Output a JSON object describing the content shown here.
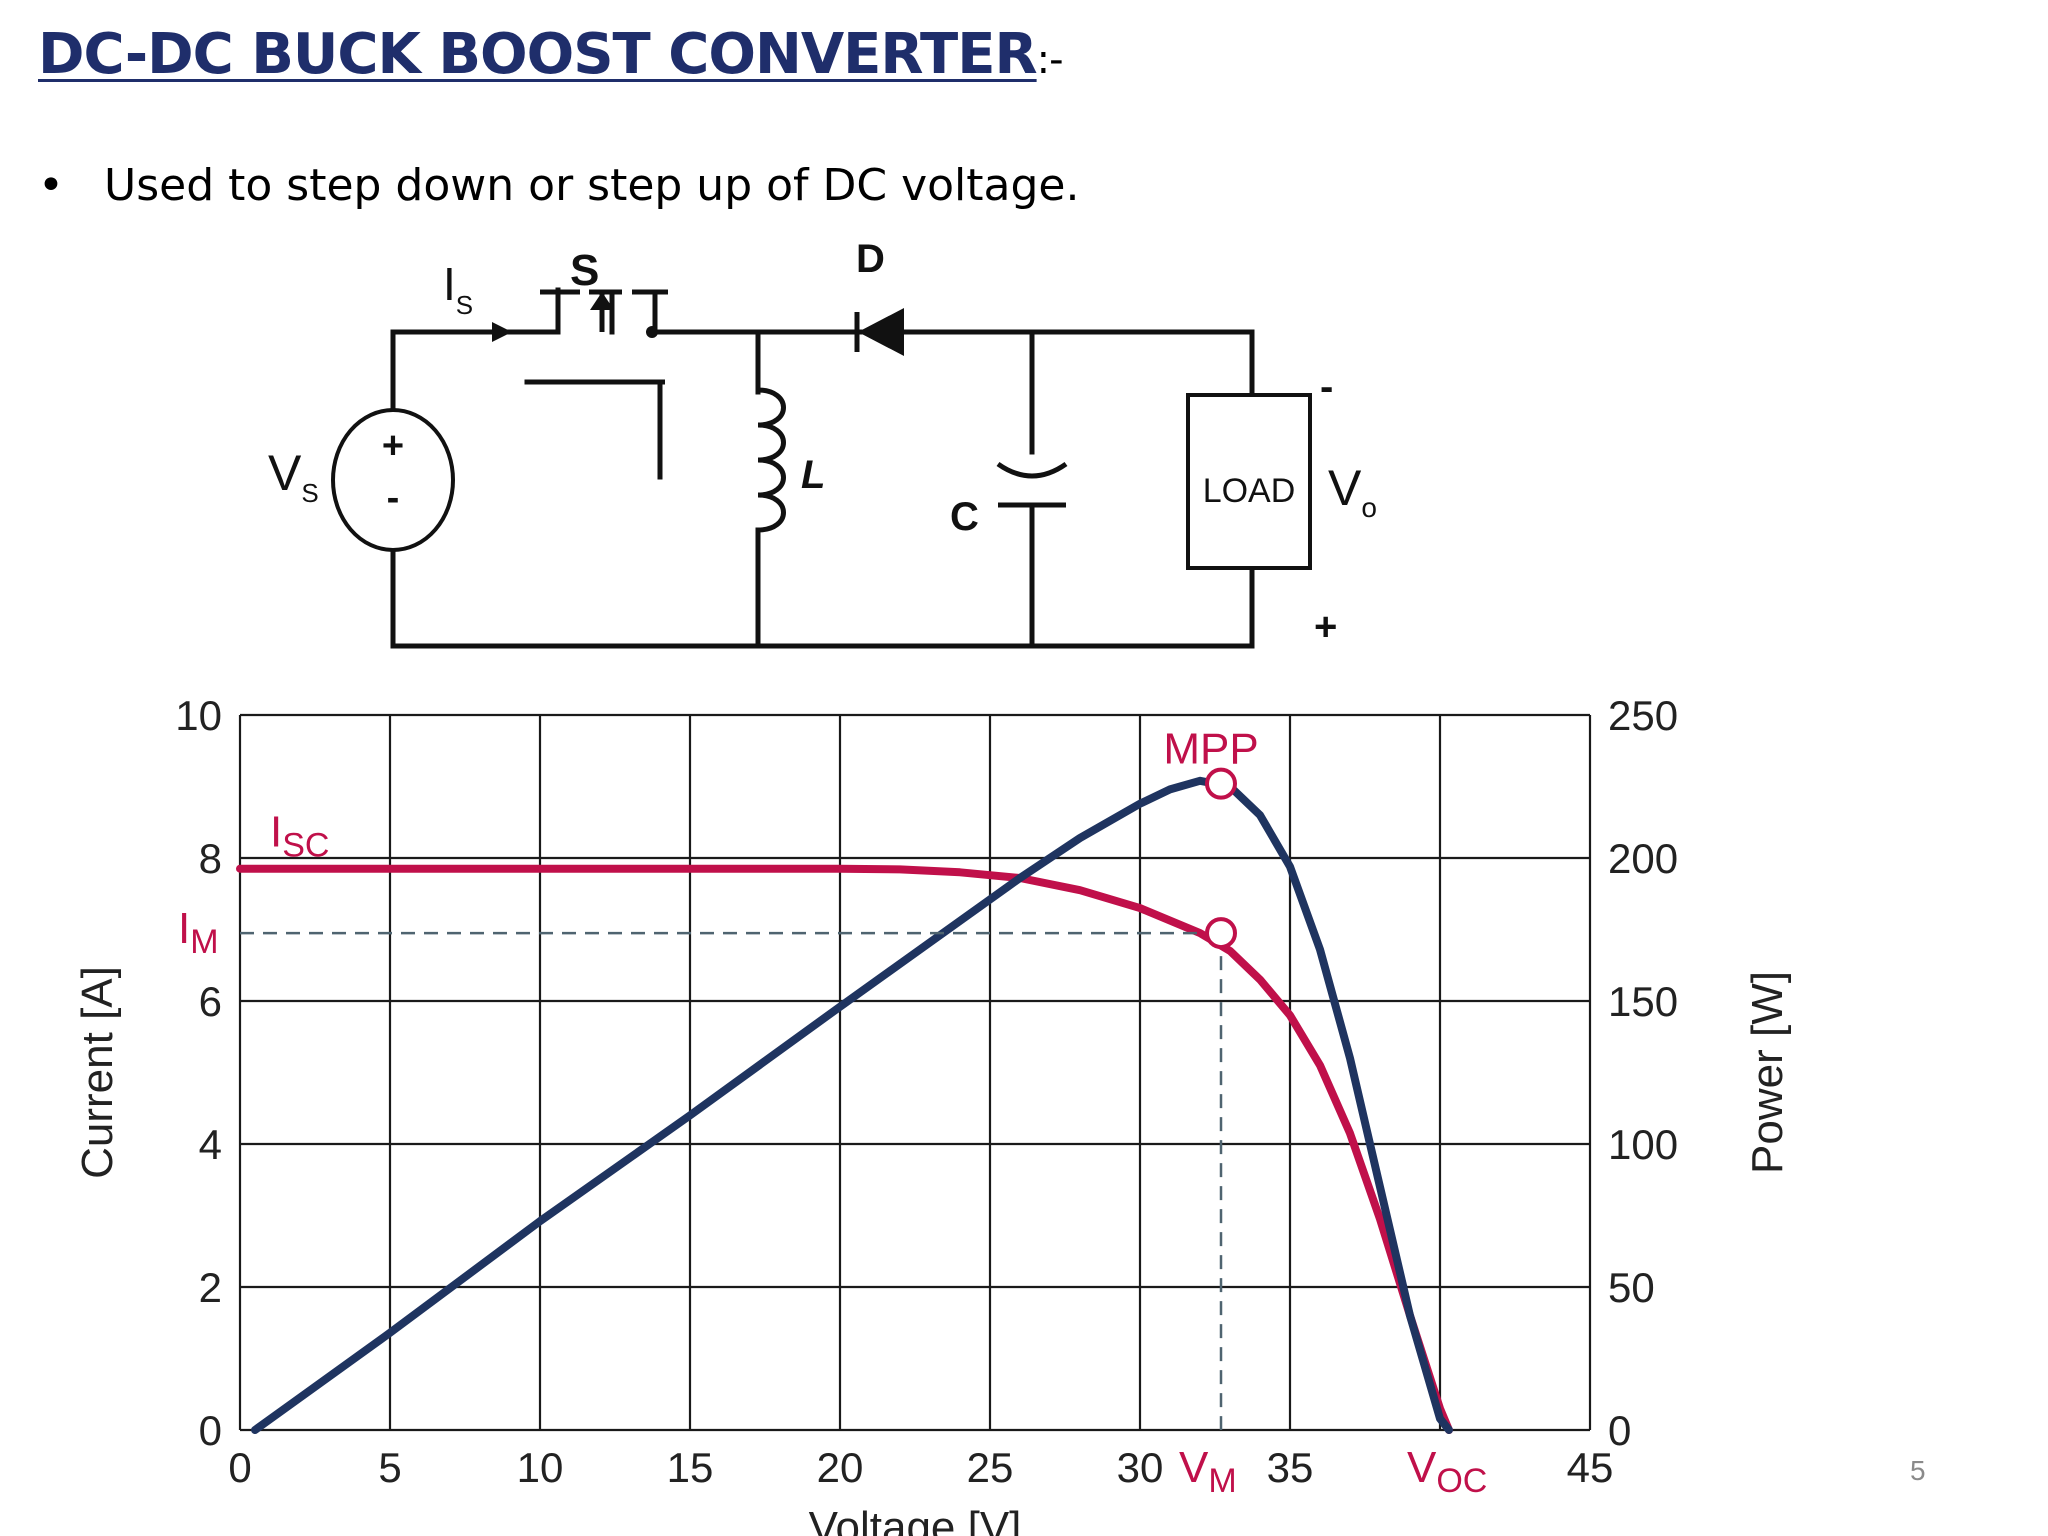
{
  "slide": {
    "title": "DC-DC BUCK BOOST CONVERTER",
    "title_suffix": ":-",
    "bullet": "Used to step down or step up of DC voltage.",
    "bullet_marker": "•",
    "page_number": "5",
    "colors": {
      "title": "#1f2e6b"
    }
  },
  "circuit": {
    "source_sign_plus": "+",
    "source_sign_minus": "-",
    "vs_main": "V",
    "vs_sub": "S",
    "is_main": "I",
    "is_sub": "S",
    "switch_label": "S",
    "diode_label": "D",
    "inductor_label": "L",
    "capacitor_label": "C",
    "load_label": "LOAD",
    "vo_main": "V",
    "vo_sub": "o",
    "output_minus": "-",
    "output_plus": "+"
  },
  "chart_data": {
    "type": "line",
    "xlabel": "Voltage [V]",
    "ylabel_left": "Current [A]",
    "ylabel_right": "Power [W]",
    "x_range": [
      0,
      45
    ],
    "y_left_range": [
      0,
      10
    ],
    "y_right_range": [
      0,
      250
    ],
    "x_ticks": [
      "0",
      "5",
      "10",
      "15",
      "20",
      "25",
      "30",
      "35",
      "",
      "45"
    ],
    "x_tick_values": [
      0,
      5,
      10,
      15,
      20,
      25,
      30,
      35,
      40,
      45
    ],
    "y_left_ticks": [
      "0",
      "2",
      "4",
      "6",
      "8",
      "10"
    ],
    "y_right_ticks": [
      "0",
      "50",
      "100",
      "150",
      "200",
      "250"
    ],
    "grid": true,
    "series": [
      {
        "axis": "left",
        "color": "#c0104a",
        "points": [
          [
            0,
            7.85
          ],
          [
            5,
            7.85
          ],
          [
            10,
            7.85
          ],
          [
            15,
            7.85
          ],
          [
            20,
            7.85
          ],
          [
            22,
            7.84
          ],
          [
            24,
            7.8
          ],
          [
            26,
            7.72
          ],
          [
            28,
            7.55
          ],
          [
            30,
            7.3
          ],
          [
            32,
            6.95
          ],
          [
            33,
            6.7
          ],
          [
            34,
            6.3
          ],
          [
            35,
            5.8
          ],
          [
            36,
            5.1
          ],
          [
            37,
            4.15
          ],
          [
            38,
            2.95
          ],
          [
            39,
            1.6
          ],
          [
            40,
            0.3
          ],
          [
            40.3,
            0
          ]
        ]
      },
      {
        "axis": "right",
        "color": "#1f3460",
        "points": [
          [
            0.5,
            0
          ],
          [
            5,
            34
          ],
          [
            10,
            73
          ],
          [
            15,
            110
          ],
          [
            20,
            148
          ],
          [
            24,
            178
          ],
          [
            26,
            193
          ],
          [
            28,
            207
          ],
          [
            30,
            219
          ],
          [
            31,
            224
          ],
          [
            32,
            227
          ],
          [
            33,
            225
          ],
          [
            34,
            215
          ],
          [
            35,
            197
          ],
          [
            36,
            168
          ],
          [
            37,
            130
          ],
          [
            38,
            85
          ],
          [
            39,
            40
          ],
          [
            40,
            4
          ],
          [
            40.3,
            0
          ]
        ]
      }
    ],
    "annotations": {
      "mpp": {
        "label": "MPP",
        "x": 32.7,
        "y_right": 226
      },
      "im_point": {
        "x": 32.7,
        "y_left": 6.95
      },
      "isc": {
        "main": "I",
        "sub": "SC",
        "y_left": 7.85
      },
      "im": {
        "main": "I",
        "sub": "M",
        "y_left": 6.95
      },
      "vm": {
        "main": "V",
        "sub": "M",
        "x": 32.7
      },
      "voc": {
        "main": "V",
        "sub": "OC",
        "x": 40.3
      }
    },
    "colors": {
      "annotation": "#c0104a",
      "power": "#1f3460",
      "grid": "#1a1a1a"
    }
  }
}
